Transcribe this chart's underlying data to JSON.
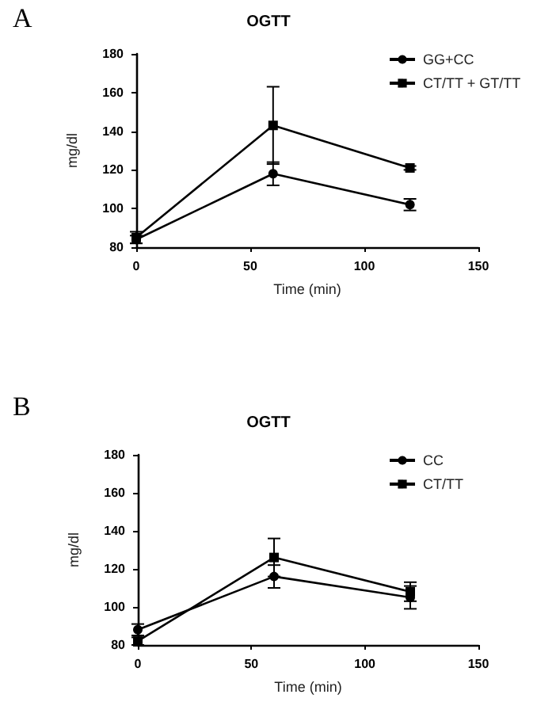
{
  "chart_data": [
    {
      "type": "line",
      "title": "OGTT",
      "annotations": [
        "A"
      ],
      "xlabel": "Time (min)",
      "ylabel": "mg/dl",
      "x": [
        0,
        60,
        120
      ],
      "xlim": [
        0,
        150
      ],
      "xticks": [
        0,
        50,
        100,
        150
      ],
      "ylim": [
        80,
        180
      ],
      "yticks": [
        80,
        100,
        120,
        140,
        160,
        180
      ],
      "grid": false,
      "legend": "top right",
      "series": [
        {
          "name": "GG+CC",
          "color": "#000000",
          "marker": "circle",
          "values": [
            84,
            118,
            102
          ],
          "errors": [
            2,
            6,
            3
          ]
        },
        {
          "name": "CT/TT + GT/TT",
          "color": "#000000",
          "marker": "square",
          "values": [
            85,
            143,
            121
          ],
          "errors": [
            3,
            20,
            1
          ]
        }
      ]
    },
    {
      "type": "line",
      "title": "OGTT",
      "annotations": [
        "B"
      ],
      "xlabel": "Time (min)",
      "ylabel": "mg/dl",
      "x": [
        0,
        60,
        120
      ],
      "xlim": [
        0,
        150
      ],
      "xticks": [
        0,
        50,
        100,
        150
      ],
      "ylim": [
        80,
        180
      ],
      "yticks": [
        80,
        100,
        120,
        140,
        160,
        180
      ],
      "grid": false,
      "legend": "top right",
      "series": [
        {
          "name": "CC",
          "color": "#000000",
          "marker": "circle",
          "values": [
            88,
            116,
            105
          ],
          "errors": [
            3,
            6,
            6
          ]
        },
        {
          "name": "CT/TT",
          "color": "#000000",
          "marker": "square",
          "values": [
            82,
            126,
            108
          ],
          "errors": [
            2,
            10,
            5
          ]
        }
      ]
    }
  ]
}
